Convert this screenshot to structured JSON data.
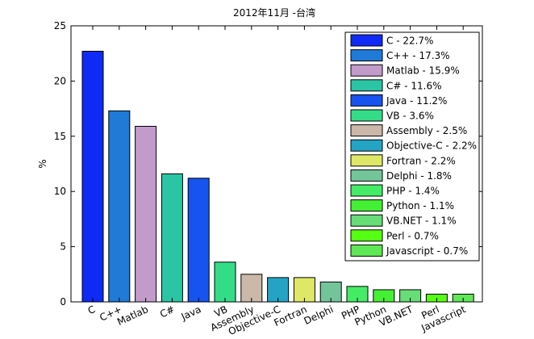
{
  "chart_data": {
    "type": "bar",
    "title": "2012年11月 -台湾",
    "xlabel": "",
    "ylabel": "%",
    "ylim": [
      0,
      25
    ],
    "yticks": [
      0,
      5,
      10,
      15,
      20,
      25
    ],
    "grid": false,
    "legend_position": "top-right",
    "categories": [
      "C",
      "C++",
      "Matlab",
      "C#",
      "Java",
      "VB",
      "Assembly",
      "Objective-C",
      "Fortran",
      "Delphi",
      "PHP",
      "Python",
      "VB.NET",
      "Perl",
      "Javascript"
    ],
    "values": [
      22.7,
      17.3,
      15.9,
      11.6,
      11.2,
      3.6,
      2.5,
      2.2,
      2.2,
      1.8,
      1.4,
      1.1,
      1.1,
      0.7,
      0.7
    ],
    "colors": [
      "#0f2af5",
      "#1f7ad8",
      "#c29bcb",
      "#2bc4a4",
      "#1653ef",
      "#33dd88",
      "#cbb8a8",
      "#24a4c4",
      "#dee866",
      "#74c49a",
      "#44ec66",
      "#44f033",
      "#66dd77",
      "#55ff11",
      "#5ee855"
    ],
    "legend": [
      "C - 22.7%",
      "C++ - 17.3%",
      "Matlab - 15.9%",
      "C# - 11.6%",
      "Java - 11.2%",
      "VB - 3.6%",
      "Assembly - 2.5%",
      "Objective-C - 2.2%",
      "Fortran - 2.2%",
      "Delphi - 1.8%",
      "PHP - 1.4%",
      "Python - 1.1%",
      "VB.NET - 1.1%",
      "Perl - 0.7%",
      "Javascript - 0.7%"
    ]
  }
}
